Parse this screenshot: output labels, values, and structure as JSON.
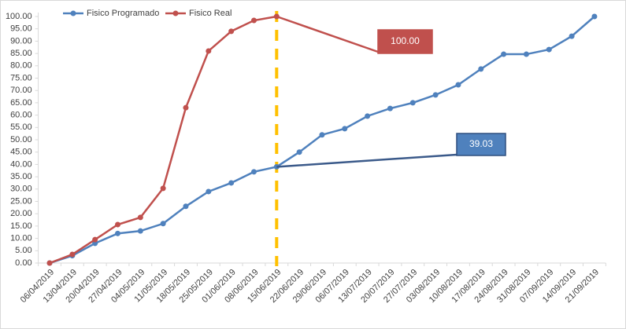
{
  "chart_data": {
    "type": "line",
    "categories": [
      "06/04/2019",
      "13/04/2019",
      "20/04/2019",
      "27/04/2019",
      "04/05/2019",
      "11/05/2019",
      "18/05/2019",
      "25/05/2019",
      "01/06/2019",
      "08/06/2019",
      "15/06/2019",
      "22/06/2019",
      "29/06/2019",
      "06/07/2019",
      "13/07/2019",
      "20/07/2019",
      "27/07/2019",
      "03/08/2019",
      "10/08/2019",
      "17/08/2019",
      "24/08/2019",
      "31/08/2019",
      "07/09/2019",
      "14/09/2019",
      "21/09/2019"
    ],
    "series": [
      {
        "name": "Fisico Programado",
        "color": "#4f81bd",
        "values": [
          0,
          3,
          8,
          12,
          13,
          16,
          23,
          29,
          32.5,
          37,
          39.03,
          45,
          52,
          54.5,
          59.6,
          62.7,
          65,
          68.2,
          72.3,
          78.7,
          84.7,
          84.7,
          86.6,
          92,
          100
        ],
        "value_labels": [
          null,
          null,
          null,
          null,
          null,
          null,
          null,
          null,
          null,
          null,
          "39.03",
          null,
          null,
          null,
          null,
          null,
          null,
          null,
          null,
          null,
          null,
          null,
          null,
          null,
          null
        ]
      },
      {
        "name": "Fisico Real",
        "color": "#c0504d",
        "values": [
          0,
          3.5,
          9.5,
          15.6,
          18.5,
          30.3,
          63,
          86,
          94,
          98.4,
          100,
          null,
          null,
          null,
          null,
          null,
          null,
          null,
          null,
          null,
          null,
          null,
          null,
          null,
          null
        ],
        "value_labels": [
          null,
          null,
          null,
          null,
          null,
          null,
          null,
          null,
          null,
          null,
          "100.00",
          null,
          null,
          null,
          null,
          null,
          null,
          null,
          null,
          null,
          null,
          null,
          null,
          null,
          null
        ]
      }
    ],
    "ylim": [
      0,
      100
    ],
    "yticks": [
      {
        "value": 0,
        "label": "0.00"
      },
      {
        "value": 5,
        "label": "5.00"
      },
      {
        "value": 10,
        "label": "10.00"
      },
      {
        "value": 15,
        "label": "15.00"
      },
      {
        "value": 20,
        "label": "20.00"
      },
      {
        "value": 25,
        "label": "25.00"
      },
      {
        "value": 30,
        "label": "30.00"
      },
      {
        "value": 35,
        "label": "35.00"
      },
      {
        "value": 40,
        "label": "40.00"
      },
      {
        "value": 45,
        "label": "45.00"
      },
      {
        "value": 50,
        "label": "50.00"
      },
      {
        "value": 55,
        "label": "55.00"
      },
      {
        "value": 60,
        "label": "60.00"
      },
      {
        "value": 65,
        "label": "65.00"
      },
      {
        "value": 70,
        "label": "70.00"
      },
      {
        "value": 75,
        "label": "75.00"
      },
      {
        "value": 80,
        "label": "80.00"
      },
      {
        "value": 85,
        "label": "85.00"
      },
      {
        "value": 90,
        "label": "90.00"
      },
      {
        "value": 95,
        "label": "95.00"
      },
      {
        "value": 100,
        "label": "100.00"
      }
    ],
    "legend": "top",
    "grid": false
  }
}
